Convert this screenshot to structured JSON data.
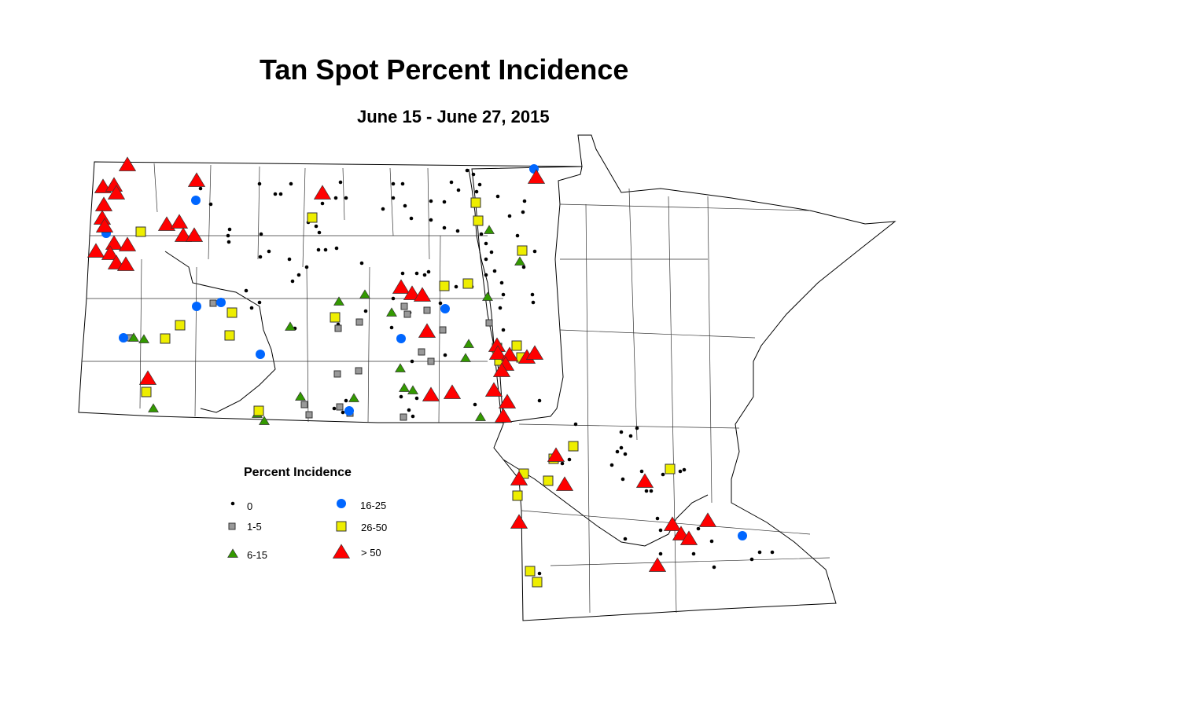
{
  "title": "Tan Spot Percent Incidence",
  "subtitle": "June 15 - June 27, 2015",
  "legend": {
    "title": "Percent Incidence",
    "classes": [
      {
        "label": "0",
        "symbol": "dot",
        "color": "#000000"
      },
      {
        "label": "1-5",
        "symbol": "square",
        "color": "#999999"
      },
      {
        "label": "6-15",
        "symbol": "triangle",
        "color": "#339900"
      },
      {
        "label": "16-25",
        "symbol": "circle",
        "color": "#0066ff"
      },
      {
        "label": "26-50",
        "symbol": "square",
        "color": "#eeee00"
      },
      {
        "label": "> 50",
        "symbol": "triangle",
        "color": "#ff0000"
      }
    ]
  }
}
